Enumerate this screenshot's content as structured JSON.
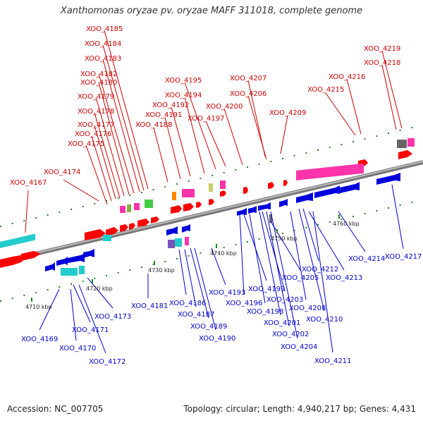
{
  "title": "Xanthomonas oryzae pv. oryzae MAFF 311018, complete genome",
  "footer": {
    "accession": "Accession: NC_007705",
    "summary": "Topology: circular; Length: 4,940,217 bp; Genes: 4,431"
  },
  "scale_ticks": [
    "4710 kbp",
    "4720 kbp",
    "4730 kbp",
    "4740 kbp",
    "4750 kbp",
    "4760 kbp"
  ],
  "top_genes": [
    "XOO_4167",
    "XOO_4174",
    "XOO_4175",
    "XOO_4176",
    "XOO_4177",
    "XOO_4178",
    "XOO_4179",
    "XOO_4180",
    "XOO_4182",
    "XOO_4183",
    "XOO_4184",
    "XOO_4185",
    "XOO_4188",
    "XOO_4191",
    "XOO_4192",
    "XOO_4194",
    "XOO_4195",
    "XOO_4197",
    "XOO_4200",
    "XOO_4206",
    "XOO_4207",
    "XOO_4209",
    "XOO_4215",
    "XOO_4216",
    "XOO_4218",
    "XOO_4219"
  ],
  "bottom_genes": [
    "XOO_4169",
    "XOO_4170",
    "XOO_4171",
    "XOO_4172",
    "XOO_4173",
    "XOO_4181",
    "XOO_4186",
    "XOO_4187",
    "XOO_4189",
    "XOO_4190",
    "XOO_4193",
    "XOO_4196",
    "XOO_4198",
    "XOO_4199",
    "XOO_4201",
    "XOO_4202",
    "XOO_4203",
    "XOO_4204",
    "XOO_4205",
    "XOO_4208",
    "XOO_4210",
    "XOO_4211",
    "XOO_4212",
    "XOO_4213",
    "XOO_4214",
    "XOO_4217"
  ],
  "colors": {
    "forward": "#ff0000",
    "reverse": "#0000dd",
    "label_top": "#cc0000",
    "label_bottom": "#0000cc",
    "axis": "#888888",
    "tick": "#228822"
  }
}
